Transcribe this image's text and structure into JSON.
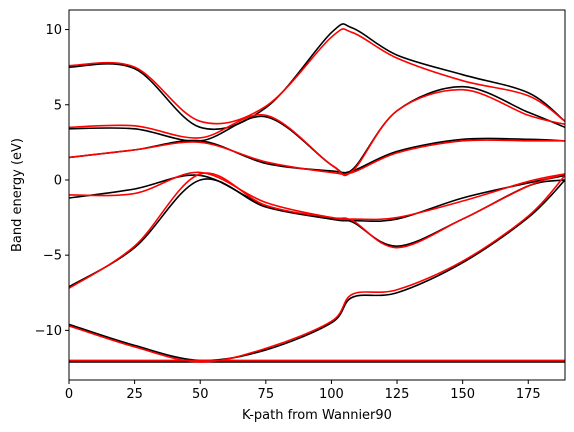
{
  "chart_data": {
    "type": "line",
    "title": "",
    "xlabel": "K-path from Wannier90",
    "ylabel": "Band energy (eV)",
    "xlim": [
      0,
      189
    ],
    "ylim": [
      -13.3,
      11.3
    ],
    "xticks": [
      0,
      25,
      50,
      75,
      100,
      125,
      150,
      175
    ],
    "yticks": [
      -10,
      -5,
      0,
      5,
      10
    ],
    "ytick_labels": [
      "−10",
      "−5",
      "0",
      "5",
      "10"
    ],
    "grid": false,
    "legend": null,
    "colors": {
      "set_a": "#000000",
      "set_b": "#ff0000"
    },
    "series": [
      {
        "set": "a",
        "x": [
          0,
          25,
          50,
          75,
          100,
          108,
          125,
          150,
          175,
          189
        ],
        "y": [
          -9.6,
          -11,
          -12,
          -11.3,
          -9.5,
          -7.8,
          -7.5,
          -5.5,
          -2.5,
          0
        ]
      },
      {
        "set": "a",
        "x": [
          0,
          25,
          50,
          75,
          100,
          108,
          125,
          150,
          175,
          189
        ],
        "y": [
          -7.1,
          -4.5,
          0,
          -1.8,
          -2.6,
          -2.8,
          -4.4,
          -2.6,
          -0.4,
          0
        ]
      },
      {
        "set": "a",
        "x": [
          0,
          25,
          50,
          75,
          100,
          108,
          125,
          150,
          175,
          189
        ],
        "y": [
          -1.2,
          -0.6,
          0.3,
          -1.7,
          -2.6,
          -2.7,
          -2.6,
          -1.2,
          -0.2,
          0.3
        ]
      },
      {
        "set": "a",
        "x": [
          0,
          25,
          50,
          75,
          100,
          108,
          125,
          150,
          175,
          189
        ],
        "y": [
          1.5,
          2,
          2.6,
          1.1,
          0.6,
          0.6,
          1.9,
          2.7,
          2.7,
          2.6
        ]
      },
      {
        "set": "a",
        "x": [
          0,
          25,
          50,
          75,
          100,
          108,
          125,
          150,
          175,
          189
        ],
        "y": [
          3.4,
          3.4,
          2.6,
          4.2,
          1,
          0.7,
          4.6,
          6.2,
          4.5,
          3.5
        ]
      },
      {
        "set": "a",
        "x": [
          0,
          25,
          50,
          75,
          100,
          108,
          125,
          150,
          175,
          189
        ],
        "y": [
          7.5,
          7.4,
          3.5,
          4.8,
          9.8,
          10.1,
          8.3,
          7,
          5.8,
          3.9
        ]
      },
      {
        "set": "a",
        "x": [
          0,
          25,
          50,
          75,
          100,
          108,
          125,
          150,
          175,
          189
        ],
        "y": [
          -12.1,
          -12.1,
          -12.1,
          -12.1,
          -12.1,
          -12.1,
          -12.1,
          -12.1,
          -12.1,
          -12.1
        ]
      },
      {
        "set": "b",
        "x": [
          0,
          25,
          50,
          75,
          100,
          108,
          125,
          150,
          175,
          189
        ],
        "y": [
          -9.7,
          -11.1,
          -12.1,
          -11.2,
          -9.4,
          -7.6,
          -7.3,
          -5.4,
          -2.4,
          0.3
        ]
      },
      {
        "set": "b",
        "x": [
          0,
          25,
          50,
          75,
          100,
          108,
          125,
          150,
          175,
          189
        ],
        "y": [
          -7.2,
          -4.4,
          0.4,
          -1.7,
          -2.5,
          -2.7,
          -4.5,
          -2.6,
          -0.4,
          0.4
        ]
      },
      {
        "set": "b",
        "x": [
          0,
          25,
          50,
          75,
          100,
          108,
          125,
          150,
          175,
          189
        ],
        "y": [
          -1,
          -0.9,
          0.5,
          -1.5,
          -2.5,
          -2.6,
          -2.5,
          -1.4,
          -0.1,
          0.4
        ]
      },
      {
        "set": "b",
        "x": [
          0,
          25,
          50,
          75,
          100,
          108,
          125,
          150,
          175,
          189
        ],
        "y": [
          1.5,
          2,
          2.5,
          1.2,
          0.5,
          0.5,
          1.8,
          2.6,
          2.6,
          2.6
        ]
      },
      {
        "set": "b",
        "x": [
          0,
          25,
          50,
          75,
          100,
          108,
          125,
          150,
          175,
          189
        ],
        "y": [
          3.5,
          3.6,
          2.8,
          4.3,
          1,
          0.6,
          4.6,
          6,
          4.3,
          3.7
        ]
      },
      {
        "set": "b",
        "x": [
          0,
          25,
          50,
          75,
          100,
          108,
          125,
          150,
          175,
          189
        ],
        "y": [
          7.6,
          7.5,
          3.9,
          4.9,
          9.5,
          9.8,
          8.1,
          6.6,
          5.6,
          3.9
        ]
      },
      {
        "set": "b",
        "x": [
          0,
          25,
          50,
          75,
          100,
          108,
          125,
          150,
          175,
          189
        ],
        "y": [
          -12,
          -12,
          -12,
          -12,
          -12,
          -12,
          -12,
          -12,
          -12,
          -12
        ]
      }
    ]
  }
}
